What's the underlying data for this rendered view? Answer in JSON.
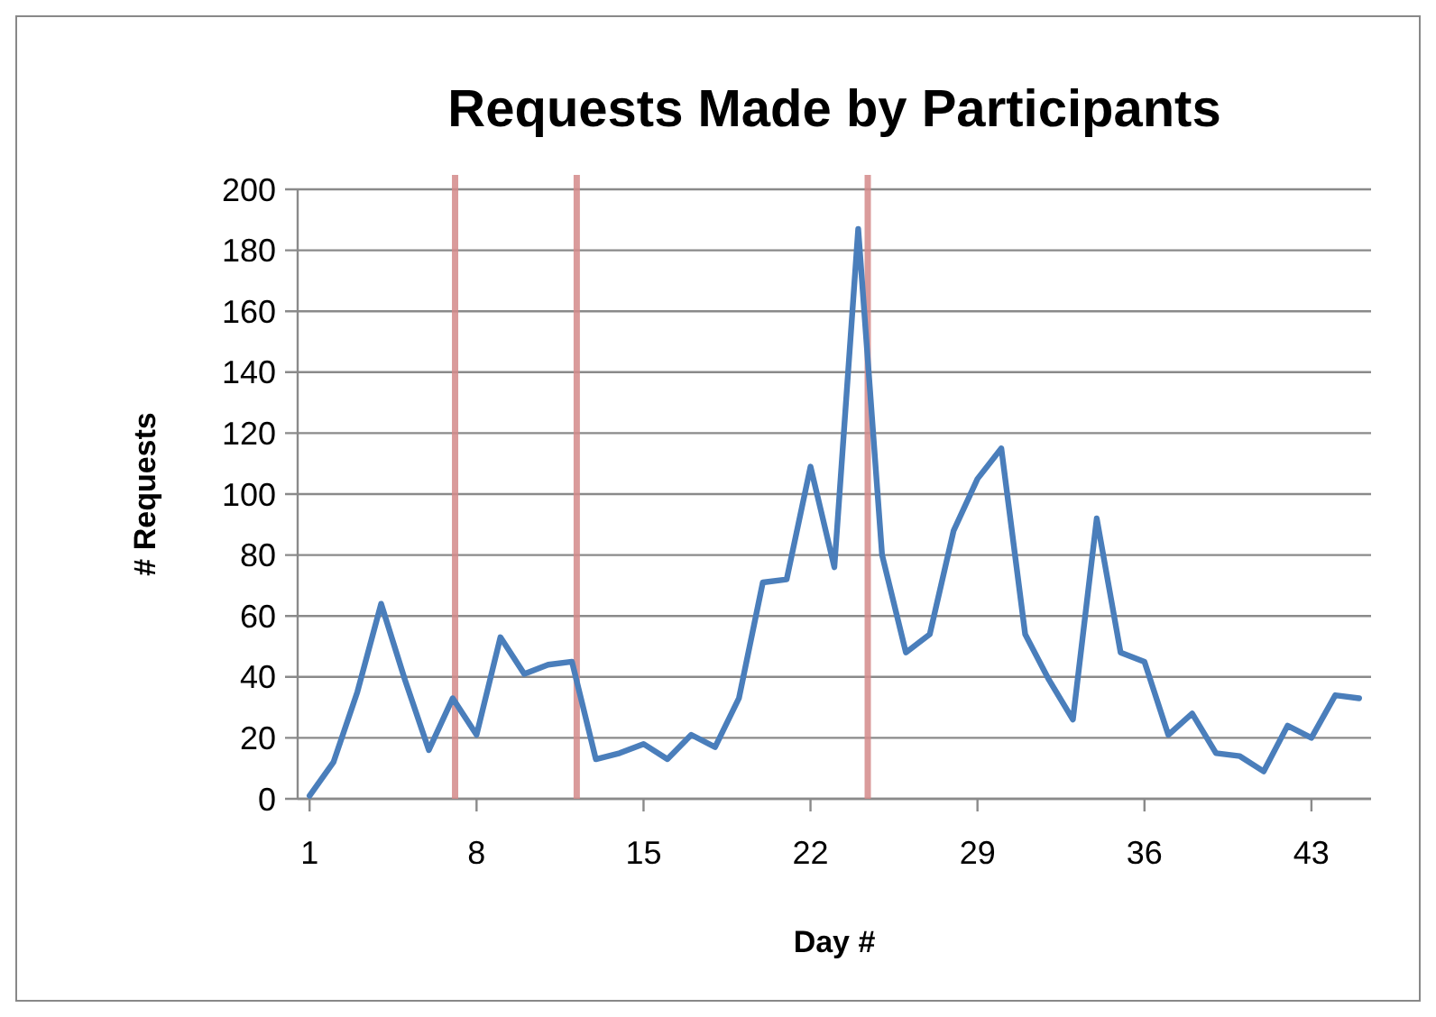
{
  "chart_data": {
    "type": "line",
    "title": "Requests Made by Participants",
    "xlabel": "Day #",
    "ylabel": "# Requests",
    "x": [
      1,
      2,
      3,
      4,
      5,
      6,
      7,
      8,
      9,
      10,
      11,
      12,
      13,
      14,
      15,
      16,
      17,
      18,
      19,
      20,
      21,
      22,
      23,
      24,
      25,
      26,
      27,
      28,
      29,
      30,
      31,
      32,
      33,
      34,
      35,
      36,
      37,
      38,
      39,
      40,
      41,
      42,
      43,
      44,
      45
    ],
    "series": [
      {
        "color": "#4a7ebb",
        "values": [
          1,
          12,
          35,
          64,
          39,
          16,
          33,
          21,
          53,
          41,
          44,
          45,
          13,
          15,
          18,
          13,
          21,
          17,
          33,
          71,
          72,
          109,
          76,
          187,
          80,
          48,
          54,
          88,
          105,
          115,
          54,
          39,
          26,
          92,
          48,
          45,
          21,
          28,
          15,
          14,
          9,
          24,
          20,
          34,
          33
        ]
      }
    ],
    "xlim": [
      0.5,
      45.5
    ],
    "xticks": [
      1,
      8,
      15,
      22,
      29,
      36,
      43
    ],
    "ylim": [
      0,
      200
    ],
    "yticks": [
      0,
      20,
      40,
      60,
      80,
      100,
      120,
      140,
      160,
      180,
      200
    ],
    "grid": "y",
    "marker": "none",
    "line_style": "solid",
    "ref_lines": [
      {
        "axis": "x",
        "value": 7.1,
        "color": "#d48a8a"
      },
      {
        "axis": "x",
        "value": 12.2,
        "color": "#d48a8a"
      },
      {
        "axis": "x",
        "value": 24.4,
        "color": "#d48a8a"
      }
    ]
  }
}
